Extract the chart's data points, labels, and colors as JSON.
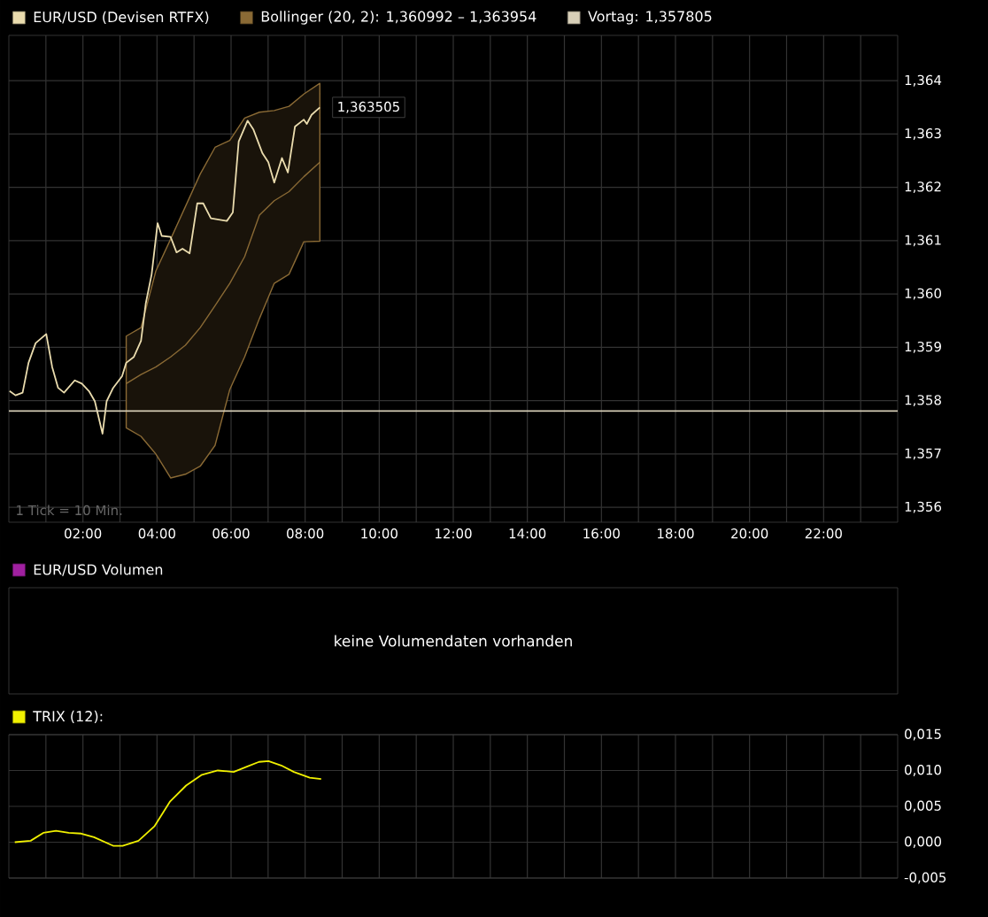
{
  "chart_data": [
    {
      "type": "line",
      "legend": "top left",
      "grid": true,
      "xlim": [
        0,
        24
      ],
      "xticks": [
        {
          "value": 1,
          "label": null
        },
        {
          "value": 2,
          "label": "02:00"
        },
        {
          "value": 3,
          "label": null
        },
        {
          "value": 4,
          "label": "04:00"
        },
        {
          "value": 5,
          "label": null
        },
        {
          "value": 6,
          "label": "06:00"
        },
        {
          "value": 7,
          "label": null
        },
        {
          "value": 8,
          "label": "08:00"
        },
        {
          "value": 9,
          "label": null
        },
        {
          "value": 10,
          "label": "10:00"
        },
        {
          "value": 11,
          "label": null
        },
        {
          "value": 12,
          "label": "12:00"
        },
        {
          "value": 13,
          "label": null
        },
        {
          "value": 14,
          "label": "14:00"
        },
        {
          "value": 15,
          "label": null
        },
        {
          "value": 16,
          "label": "16:00"
        },
        {
          "value": 17,
          "label": null
        },
        {
          "value": 18,
          "label": "18:00"
        },
        {
          "value": 19,
          "label": null
        },
        {
          "value": 20,
          "label": "20:00"
        },
        {
          "value": 21,
          "label": null
        },
        {
          "value": 22,
          "label": "22:00"
        },
        {
          "value": 23,
          "label": null
        }
      ],
      "ylim": [
        1.35572,
        1.36485
      ],
      "yticks": [
        {
          "value": 1.356,
          "label": "1,356"
        },
        {
          "value": 1.357,
          "label": "1,357"
        },
        {
          "value": 1.358,
          "label": "1,358"
        },
        {
          "value": 1.359,
          "label": "1,359"
        },
        {
          "value": 1.36,
          "label": "1,360"
        },
        {
          "value": 1.361,
          "label": "1,361"
        },
        {
          "value": 1.362,
          "label": "1,362"
        },
        {
          "value": 1.363,
          "label": "1,363"
        },
        {
          "value": 1.364,
          "label": "1,364"
        }
      ],
      "series": [
        {
          "name": "Bollinger (20, 2): 1,360992 – 1,363954",
          "type": "line",
          "color": "#8a6a35",
          "x": [
            3.169,
            3.568,
            3.968,
            4.368,
            4.767,
            5.167,
            5.567,
            5.966,
            6.366,
            6.766,
            7.166,
            7.565,
            7.965,
            8.397
          ],
          "values": [
            1.35832,
            1.35849,
            1.35863,
            1.35882,
            1.35904,
            1.35937,
            1.35978,
            1.3602,
            1.3607,
            1.36148,
            1.36175,
            1.36192,
            1.3622,
            1.36247
          ],
          "lower": [
            1.35749,
            1.35733,
            1.357,
            1.35655,
            1.35662,
            1.35677,
            1.35716,
            1.35821,
            1.35882,
            1.35954,
            1.3602,
            1.36037,
            1.36098,
            1.36099
          ],
          "upper": [
            1.35921,
            1.35937,
            1.36043,
            1.36103,
            1.36164,
            1.36225,
            1.36275,
            1.36288,
            1.3633,
            1.36341,
            1.36344,
            1.36352,
            1.36375,
            1.36395
          ]
        },
        {
          "name": "EUR/USD (Devisen RTFX)",
          "type": "line",
          "color": "#eadcae",
          "x": [
            0.019,
            0.179,
            0.371,
            0.531,
            0.723,
            1.01,
            1.17,
            1.33,
            1.49,
            1.778,
            1.97,
            2.162,
            2.321,
            2.529,
            2.641,
            2.817,
            3.057,
            3.169,
            3.376,
            3.568,
            3.696,
            3.856,
            4.016,
            4.128,
            4.368,
            4.528,
            4.688,
            4.88,
            5.088,
            5.248,
            5.455,
            5.887,
            6.047,
            6.206,
            6.446,
            6.606,
            6.846,
            7.006,
            7.166,
            7.374,
            7.534,
            7.726,
            7.965,
            8.045,
            8.173,
            8.397
          ],
          "values": [
            1.35818,
            1.3581,
            1.35815,
            1.35871,
            1.35908,
            1.35925,
            1.35863,
            1.35824,
            1.35815,
            1.35838,
            1.35832,
            1.35818,
            1.35799,
            1.35738,
            1.35799,
            1.35824,
            1.35846,
            1.35871,
            1.35882,
            1.35912,
            1.35982,
            1.36037,
            1.36133,
            1.36109,
            1.36107,
            1.36078,
            1.36085,
            1.36076,
            1.3617,
            1.3617,
            1.36142,
            1.36137,
            1.36153,
            1.36286,
            1.36325,
            1.36308,
            1.36264,
            1.36247,
            1.36209,
            1.36255,
            1.36228,
            1.36314,
            1.36327,
            1.36319,
            1.36336,
            1.3635
          ]
        }
      ],
      "ref_lines": [
        {
          "axis": "y",
          "value": 1.357805,
          "label": "Vortag: 1,357805",
          "color": "#d8d0b8"
        }
      ],
      "annotations": [
        "1 Tick = 10 Min.",
        {
          "text": "1,363505",
          "x": 8.397,
          "y": 1.3635
        }
      ]
    },
    {
      "type": "other",
      "title": "EUR/USD Volumen",
      "color": "#a020a0",
      "annotations": [
        "keine Volumendaten vorhanden"
      ]
    },
    {
      "type": "line",
      "title": "TRIX (12):",
      "color": "#f0f000",
      "grid": true,
      "tick_labels": "y",
      "xlim": [
        0,
        24
      ],
      "xticks": [
        1,
        2,
        3,
        4,
        5,
        6,
        7,
        8,
        9,
        10,
        11,
        12,
        13,
        14,
        15,
        16,
        17,
        18,
        19,
        20,
        21,
        22,
        23
      ],
      "ylim": [
        -0.005,
        0.015
      ],
      "yticks": [
        {
          "value": -0.005,
          "label": "-0,005"
        },
        {
          "value": 0,
          "label": "0,000"
        },
        {
          "value": 0.005,
          "label": "0,005"
        },
        {
          "value": 0.01,
          "label": "0,010"
        },
        {
          "value": 0.015,
          "label": "0,015"
        }
      ],
      "x": [
        0.16,
        0.588,
        0.93,
        1.273,
        1.616,
        1.958,
        2.301,
        2.815,
        3.071,
        3.5,
        3.928,
        4.356,
        4.785,
        5.213,
        5.641,
        6.069,
        6.412,
        6.754,
        7.011,
        7.354,
        7.697,
        8.125,
        8.433
      ],
      "values": [
        0,
        0.0002,
        0.0013,
        0.0016,
        0.0013,
        0.0012,
        0.0007,
        -0.0005,
        -0.0005,
        0.0002,
        0.0022,
        0.0057,
        0.0079,
        0.0094,
        0.01,
        0.0098,
        0.0105,
        0.0112,
        0.0113,
        0.0107,
        0.0098,
        0.009,
        0.0088
      ]
    }
  ]
}
